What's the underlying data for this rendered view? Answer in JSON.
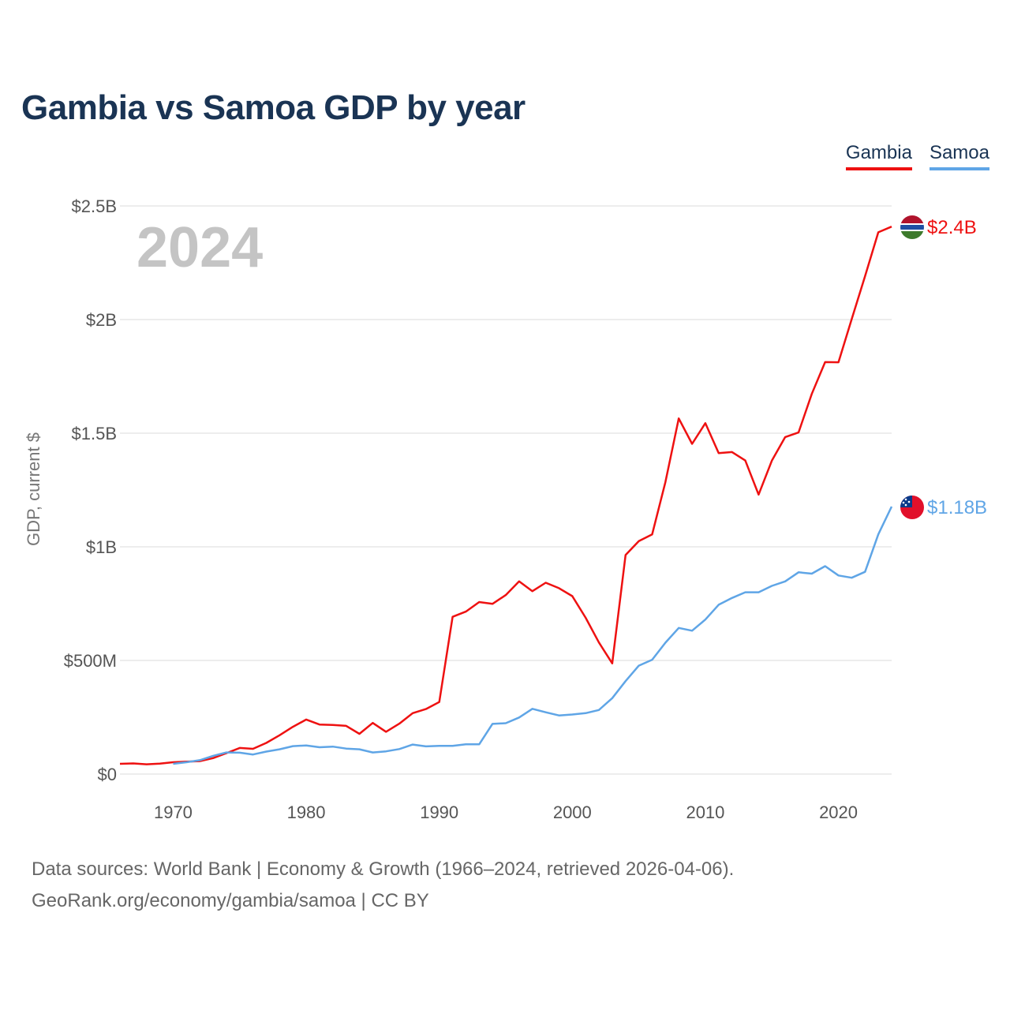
{
  "title": "Gambia vs Samoa GDP by year",
  "footer": {
    "line1": "Data sources: World Bank | Economy & Growth (1966–2024, retrieved 2026-04-06).",
    "line2": "GeoRank.org/economy/gambia/samoa | CC BY"
  },
  "colors": {
    "gambia": "#ee1111",
    "samoa": "#5fa5e6",
    "title": "#1a3454"
  },
  "chart_data": {
    "type": "line",
    "title": "Gambia vs Samoa GDP by year",
    "ylabel": "GDP, current $",
    "xlabel": "",
    "ylim": [
      0,
      2500000000
    ],
    "xlim": [
      1966,
      2024
    ],
    "yticks": [
      0,
      500000000,
      1000000000,
      1500000000,
      2000000000,
      2500000000
    ],
    "ytick_labels": [
      "$0",
      "$500M",
      "$1B",
      "$1.5B",
      "$2B",
      "$2.5B"
    ],
    "xticks": [
      1970,
      1980,
      1990,
      2000,
      2010,
      2020
    ],
    "xtick_labels": [
      "1970",
      "1980",
      "1990",
      "2000",
      "2010",
      "2020"
    ],
    "year_label": "2024",
    "legend": [
      "Gambia",
      "Samoa"
    ],
    "legend_position": "top-right",
    "series": [
      {
        "name": "Gambia",
        "color": "#ee1111",
        "end_label": "$2.4B",
        "flag": "gambia-flag",
        "x": [
          1966,
          1967,
          1968,
          1969,
          1970,
          1971,
          1972,
          1973,
          1974,
          1975,
          1976,
          1977,
          1978,
          1979,
          1980,
          1981,
          1982,
          1983,
          1984,
          1985,
          1986,
          1987,
          1988,
          1989,
          1990,
          1991,
          1992,
          1993,
          1994,
          1995,
          1996,
          1997,
          1998,
          1999,
          2000,
          2001,
          2002,
          2003,
          2004,
          2005,
          2006,
          2007,
          2008,
          2009,
          2010,
          2011,
          2012,
          2013,
          2014,
          2015,
          2016,
          2017,
          2018,
          2019,
          2020,
          2021,
          2022,
          2023,
          2024
        ],
        "values": [
          45000000,
          47000000,
          43000000,
          46000000,
          52000000,
          55000000,
          57000000,
          70000000,
          92000000,
          115000000,
          111000000,
          137000000,
          171000000,
          208000000,
          240000000,
          218000000,
          216000000,
          212000000,
          177000000,
          225000000,
          186000000,
          222000000,
          268000000,
          286000000,
          317000000,
          692000000,
          715000000,
          757000000,
          749000000,
          788000000,
          848000000,
          805000000,
          842000000,
          818000000,
          783000000,
          688000000,
          579000000,
          487000000,
          964000000,
          1025000000,
          1055000000,
          1285000000,
          1565000000,
          1453000000,
          1544000000,
          1412000000,
          1417000000,
          1380000000,
          1230000000,
          1379000000,
          1483000000,
          1503000000,
          1673000000,
          1813000000,
          1812000000,
          2002000000,
          2191000000,
          2384000000,
          2409000000
        ]
      },
      {
        "name": "Samoa",
        "color": "#5fa5e6",
        "end_label": "$1.18B",
        "flag": "samoa-flag",
        "x": [
          1970,
          1971,
          1972,
          1973,
          1974,
          1975,
          1976,
          1977,
          1978,
          1979,
          1980,
          1981,
          1982,
          1983,
          1984,
          1985,
          1986,
          1987,
          1988,
          1989,
          1990,
          1991,
          1992,
          1993,
          1994,
          1995,
          1996,
          1997,
          1998,
          1999,
          2000,
          2001,
          2002,
          2003,
          2004,
          2005,
          2006,
          2007,
          2008,
          2009,
          2010,
          2011,
          2012,
          2013,
          2014,
          2015,
          2016,
          2017,
          2018,
          2019,
          2020,
          2021,
          2022,
          2023,
          2024
        ],
        "values": [
          45000000,
          52000000,
          61000000,
          80000000,
          95000000,
          94000000,
          86000000,
          99000000,
          109000000,
          123000000,
          126000000,
          118000000,
          121000000,
          112000000,
          109000000,
          95000000,
          100000000,
          110000000,
          130000000,
          122000000,
          124000000,
          124000000,
          131000000,
          131000000,
          221000000,
          224000000,
          249000000,
          287000000,
          272000000,
          258000000,
          262000000,
          268000000,
          282000000,
          334000000,
          409000000,
          477000000,
          503000000,
          578000000,
          643000000,
          631000000,
          680000000,
          745000000,
          775000000,
          800000000,
          800000000,
          828000000,
          848000000,
          888000000,
          882000000,
          915000000,
          874000000,
          864000000,
          890000000,
          1055000000,
          1177000000
        ]
      }
    ]
  }
}
